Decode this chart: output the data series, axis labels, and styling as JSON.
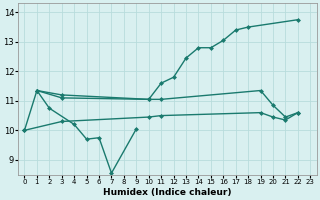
{
  "xlabel": "Humidex (Indice chaleur)",
  "line_color": "#1a7a6e",
  "bg_color": "#d9f0f0",
  "grid_color": "#b8dcdc",
  "ylim": [
    8.5,
    14.3
  ],
  "yticks": [
    9,
    10,
    11,
    12,
    13,
    14
  ],
  "xlim": [
    -0.5,
    23.5
  ],
  "line1_x": [
    0,
    1,
    2,
    4,
    5,
    6,
    7,
    9
  ],
  "line1_y": [
    10.0,
    11.35,
    10.75,
    10.2,
    9.7,
    9.75,
    8.55,
    10.05
  ],
  "line2_x": [
    1,
    3,
    10,
    11,
    12,
    13,
    14,
    15,
    16,
    17,
    18,
    22
  ],
  "line2_y": [
    11.35,
    11.2,
    11.05,
    11.6,
    11.8,
    12.45,
    12.8,
    12.8,
    13.05,
    13.4,
    13.5,
    13.75
  ],
  "line3_x": [
    1,
    3,
    10,
    11,
    19,
    20,
    21,
    22
  ],
  "line3_y": [
    11.35,
    11.1,
    11.05,
    11.05,
    11.35,
    10.85,
    10.45,
    10.6
  ],
  "line4_x": [
    0,
    3,
    10,
    11,
    19,
    20,
    21,
    22
  ],
  "line4_y": [
    10.0,
    10.3,
    10.45,
    10.5,
    10.6,
    10.45,
    10.35,
    10.6
  ]
}
